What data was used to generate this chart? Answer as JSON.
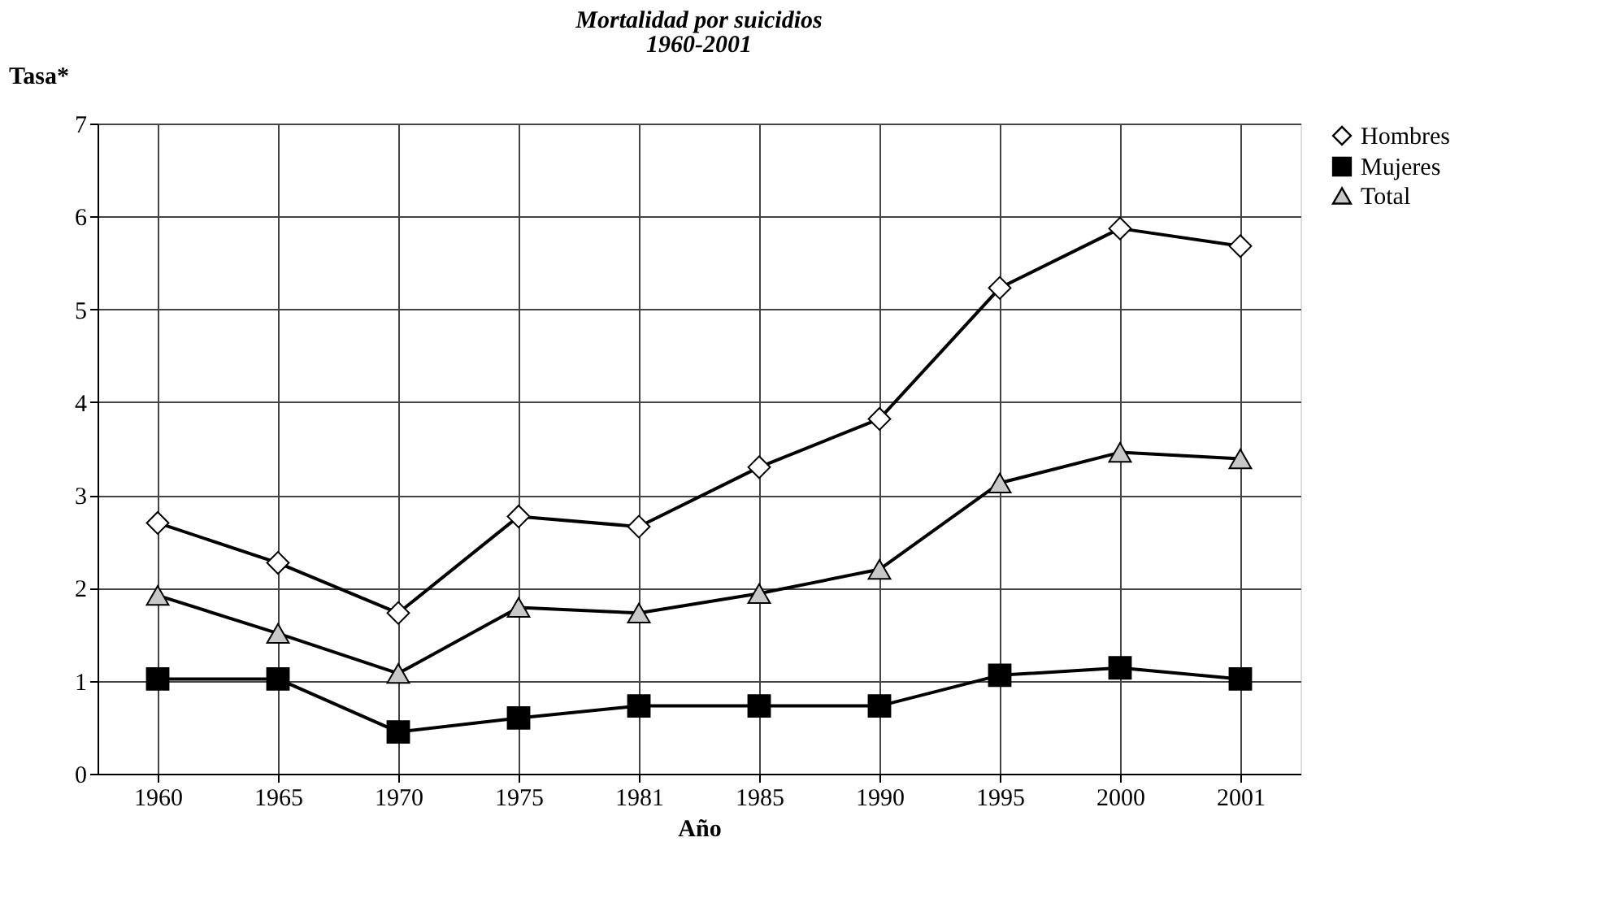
{
  "chart_data": {
    "type": "line",
    "title": "Mortalidad por suicidios",
    "subtitle": "1960-2001",
    "xlabel": "Año",
    "ylabel": "Tasa*",
    "categories": [
      "1960",
      "1965",
      "1970",
      "1975",
      "1981",
      "1985",
      "1990",
      "1995",
      "2000",
      "2001"
    ],
    "series": [
      {
        "name": "Hombres",
        "color": "#ffffff",
        "marker": "diamond",
        "values": [
          2.7,
          2.27,
          1.73,
          2.77,
          2.66,
          3.3,
          3.82,
          5.23,
          5.87,
          5.68
        ]
      },
      {
        "name": "Mujeres",
        "color": "#000000",
        "marker": "square",
        "values": [
          1.02,
          1.02,
          0.45,
          0.6,
          0.73,
          0.73,
          0.73,
          1.06,
          1.14,
          1.02
        ]
      },
      {
        "name": "Total",
        "color": "#c8c8c8",
        "marker": "triangle",
        "values": [
          1.92,
          1.51,
          1.08,
          1.79,
          1.73,
          1.94,
          2.2,
          3.13,
          3.46,
          3.39
        ]
      }
    ],
    "ylim": [
      0,
      7
    ],
    "yticks": [
      0,
      1,
      2,
      3,
      4,
      5,
      6,
      7
    ],
    "grid": true,
    "legend": "right",
    "line_style": "solid"
  }
}
